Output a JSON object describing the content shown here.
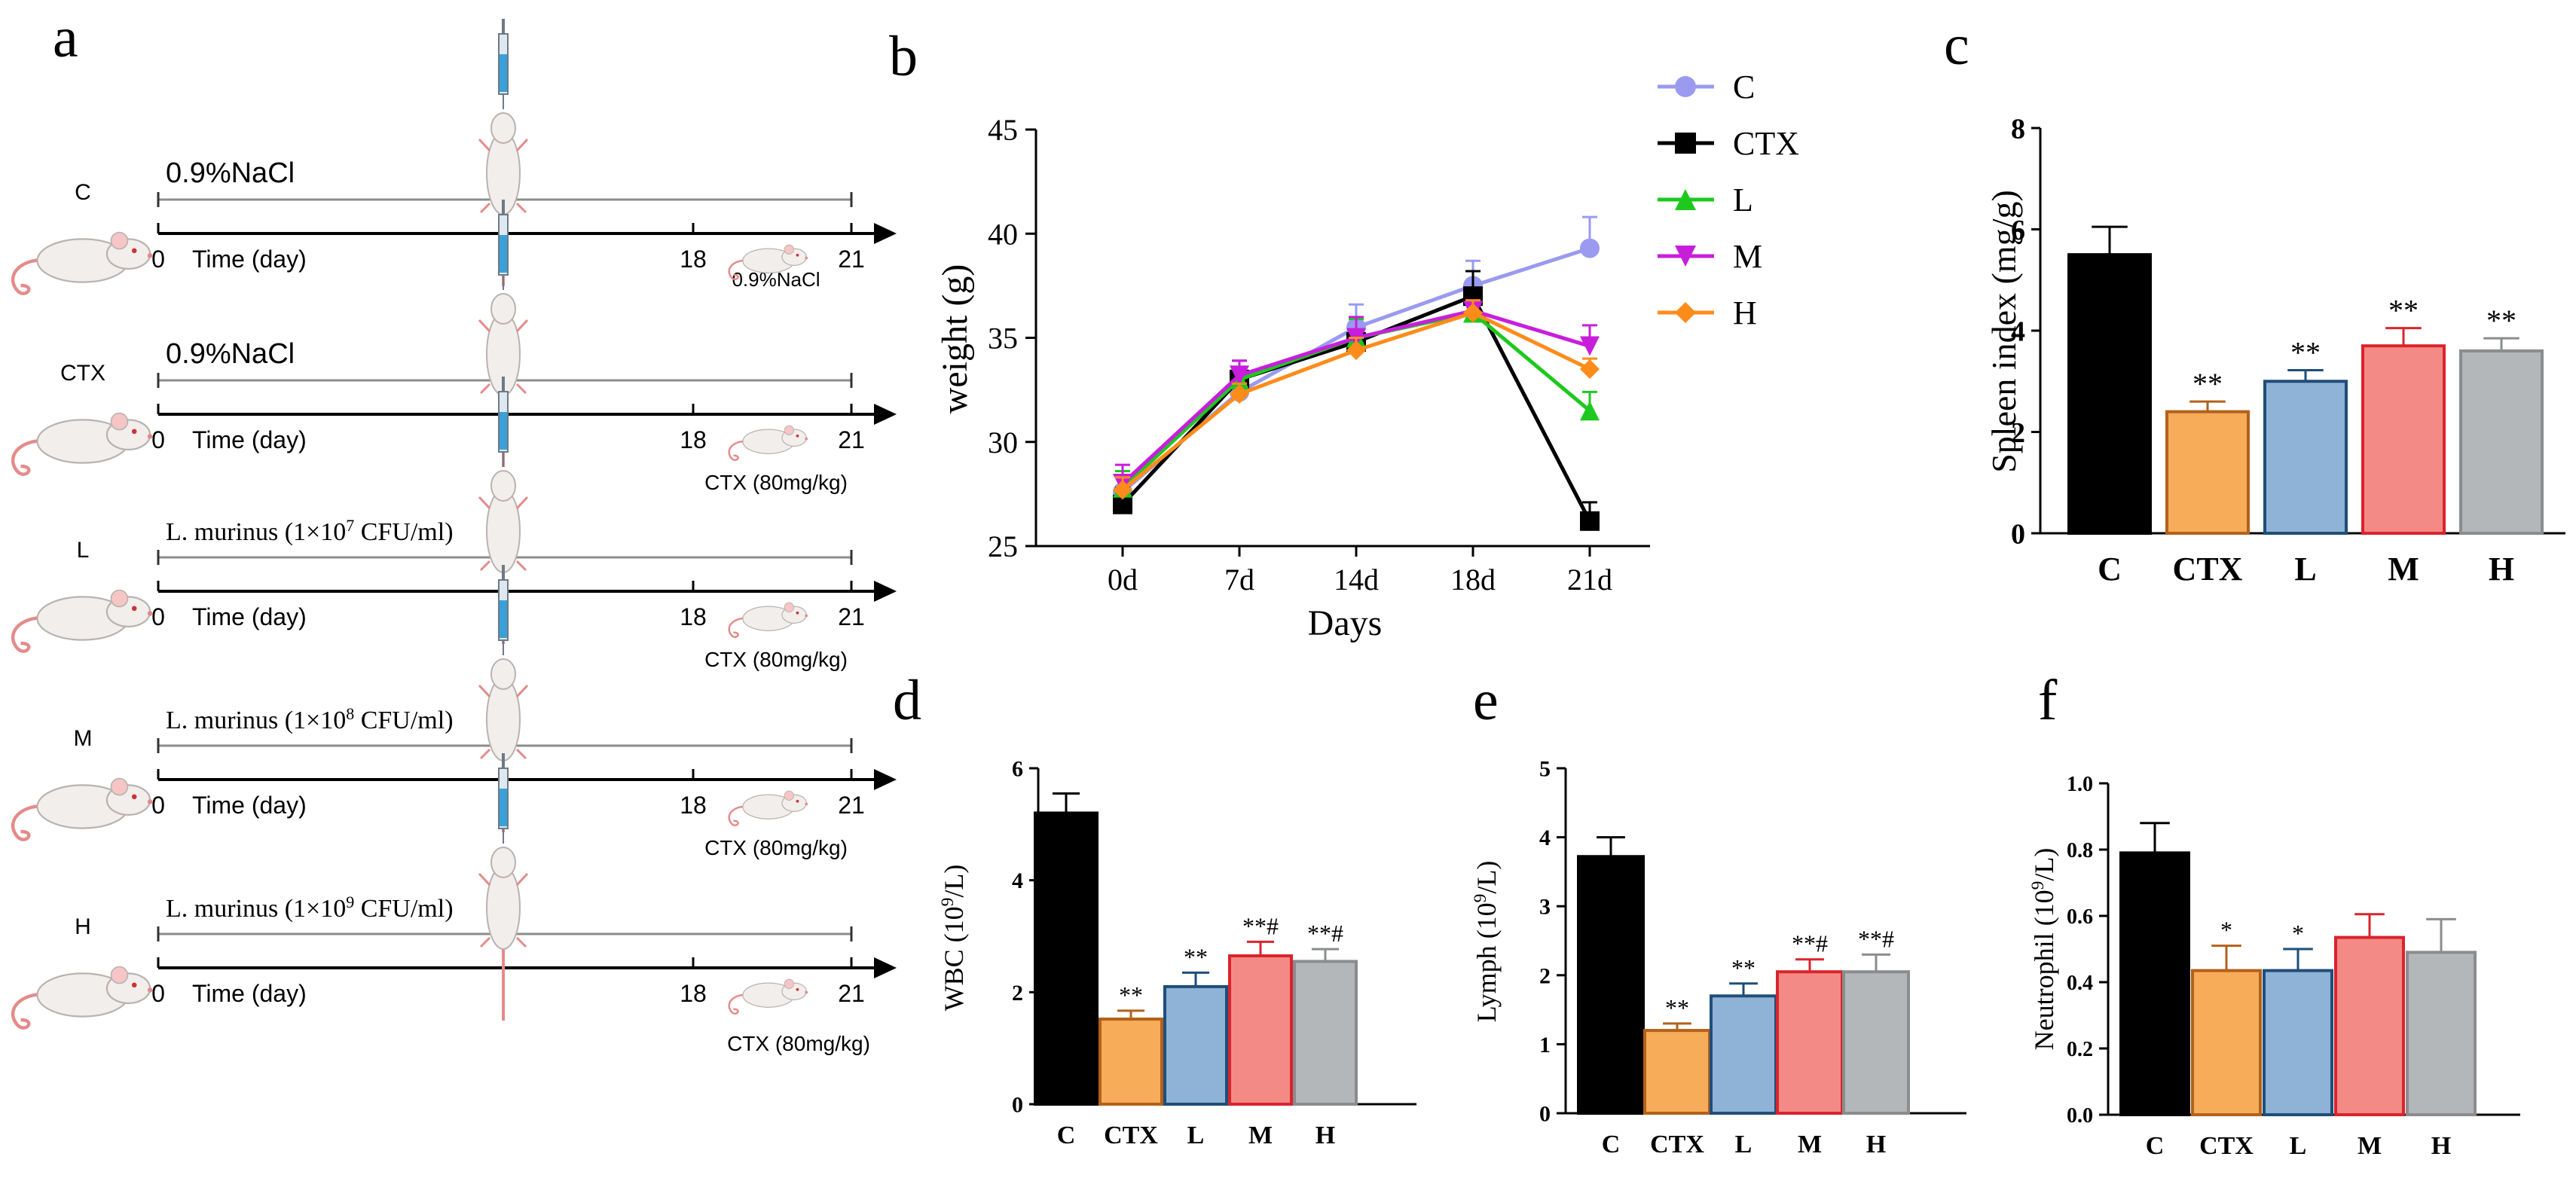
{
  "panels": {
    "a": "a",
    "b": "b",
    "c": "c",
    "d": "d",
    "e": "e",
    "f": "f"
  },
  "schematic": {
    "time_label": "Time (day)",
    "tick_start": "0",
    "tick_mid": "18",
    "tick_end": "21",
    "rows": [
      {
        "group": "C",
        "pretreat": "0.9%NaCl",
        "pretreat_sup": "",
        "pretreat_suffix": "",
        "injection": "0.9%NaCl"
      },
      {
        "group": "CTX",
        "pretreat": "0.9%NaCl",
        "pretreat_sup": "",
        "pretreat_suffix": "",
        "injection": "CTX (80mg/kg)"
      },
      {
        "group": "L",
        "pretreat": "L. murinus (1×10",
        "pretreat_sup": "7",
        "pretreat_suffix": " CFU/ml)",
        "injection": "CTX (80mg/kg)"
      },
      {
        "group": "M",
        "pretreat": "L. murinus (1×10",
        "pretreat_sup": "8",
        "pretreat_suffix": " CFU/ml)",
        "injection": "CTX (80mg/kg)"
      },
      {
        "group": "H",
        "pretreat": "L. murinus (1×10",
        "pretreat_sup": "9",
        "pretreat_suffix": " CFU/ml)",
        "injection": "CTX (80mg/kg)"
      }
    ]
  },
  "colors": {
    "C_line": "#9a9af0",
    "CTX_line": "#000000",
    "L_line": "#1ec81e",
    "M_line": "#c81edc",
    "H_line": "#ff8c1a",
    "bar_C": "#000000",
    "bar_CTX": "#f7ac5a",
    "bar_L": "#8fb3d6",
    "bar_M": "#f48a86",
    "bar_H": "#b4b7b9",
    "edge_CTX": "#b3611a",
    "edge_L": "#1f4e79",
    "edge_M": "#d9242d",
    "edge_H": "#8a8c8e"
  },
  "chart_data": [
    {
      "id": "b",
      "type": "line",
      "xlabel": "Days",
      "ylabel": "weight (g)",
      "categories": [
        "0d",
        "7d",
        "14d",
        "18d",
        "21d"
      ],
      "ylim": [
        25,
        45
      ],
      "yticks": [
        "25",
        "30",
        "35",
        "40",
        "45"
      ],
      "legend": [
        "C",
        "CTX",
        "L",
        "M",
        "H"
      ],
      "series": [
        {
          "name": "C",
          "values": [
            27.6,
            32.4,
            35.5,
            37.5,
            39.3
          ],
          "err": [
            1.0,
            0.7,
            1.1,
            1.2,
            1.5
          ]
        },
        {
          "name": "CTX",
          "values": [
            27.0,
            33.0,
            34.8,
            37.0,
            26.2
          ],
          "err": [
            0.8,
            0.9,
            0.6,
            1.2,
            0.9
          ]
        },
        {
          "name": "L",
          "values": [
            27.8,
            33.0,
            35.0,
            36.2,
            31.5
          ],
          "err": [
            0.8,
            0.6,
            0.9,
            0.5,
            0.9
          ]
        },
        {
          "name": "M",
          "values": [
            28.0,
            33.2,
            35.0,
            36.3,
            34.6
          ],
          "err": [
            0.9,
            0.7,
            1.0,
            0.5,
            1.0
          ]
        },
        {
          "name": "H",
          "values": [
            27.7,
            32.3,
            34.4,
            36.2,
            33.5
          ],
          "err": [
            0.6,
            0.5,
            0.6,
            0.6,
            0.5
          ]
        }
      ]
    },
    {
      "id": "c",
      "type": "bar",
      "ylabel": "Spleen index (mg/g)",
      "categories": [
        "C",
        "CTX",
        "L",
        "M",
        "H"
      ],
      "values": [
        5.5,
        2.4,
        3.0,
        3.7,
        3.6
      ],
      "err": [
        0.55,
        0.2,
        0.22,
        0.35,
        0.25
      ],
      "annotations": [
        "",
        "**",
        "**",
        "**",
        "**"
      ],
      "ylim": [
        0,
        8
      ],
      "yticks": [
        "0",
        "2",
        "4",
        "6",
        "8"
      ]
    },
    {
      "id": "d",
      "type": "bar",
      "ylabel_main": "WBC (10",
      "ylabel_sup": "9",
      "ylabel_suffix": "/L)",
      "categories": [
        "C",
        "CTX",
        "L",
        "M",
        "H"
      ],
      "values": [
        5.2,
        1.52,
        2.1,
        2.65,
        2.55
      ],
      "err": [
        0.35,
        0.15,
        0.25,
        0.25,
        0.22
      ],
      "annotations": [
        "",
        "**",
        "**",
        "**#",
        "**#"
      ],
      "ylim": [
        0,
        6
      ],
      "yticks": [
        "0",
        "2",
        "4",
        "6"
      ]
    },
    {
      "id": "e",
      "type": "bar",
      "ylabel_main": "Lymph (10",
      "ylabel_sup": "9",
      "ylabel_suffix": "/L)",
      "categories": [
        "C",
        "CTX",
        "L",
        "M",
        "H"
      ],
      "values": [
        3.72,
        1.2,
        1.7,
        2.05,
        2.05
      ],
      "err": [
        0.28,
        0.1,
        0.18,
        0.18,
        0.25
      ],
      "annotations": [
        "",
        "**",
        "**",
        "**#",
        "**#"
      ],
      "ylim": [
        0,
        5
      ],
      "yticks": [
        "0",
        "1",
        "2",
        "3",
        "4",
        "5"
      ]
    },
    {
      "id": "f",
      "type": "bar",
      "ylabel_main": "Neutrophil (10",
      "ylabel_sup": "9",
      "ylabel_suffix": "/L)",
      "categories": [
        "C",
        "CTX",
        "L",
        "M",
        "H"
      ],
      "values": [
        0.79,
        0.435,
        0.435,
        0.535,
        0.49
      ],
      "err": [
        0.09,
        0.075,
        0.065,
        0.07,
        0.1
      ],
      "annotations": [
        "",
        "*",
        "*",
        "",
        ""
      ],
      "ylim": [
        0,
        1.0
      ],
      "yticks": [
        "0.0",
        "0.2",
        "0.4",
        "0.6",
        "0.8",
        "1.0"
      ]
    }
  ]
}
